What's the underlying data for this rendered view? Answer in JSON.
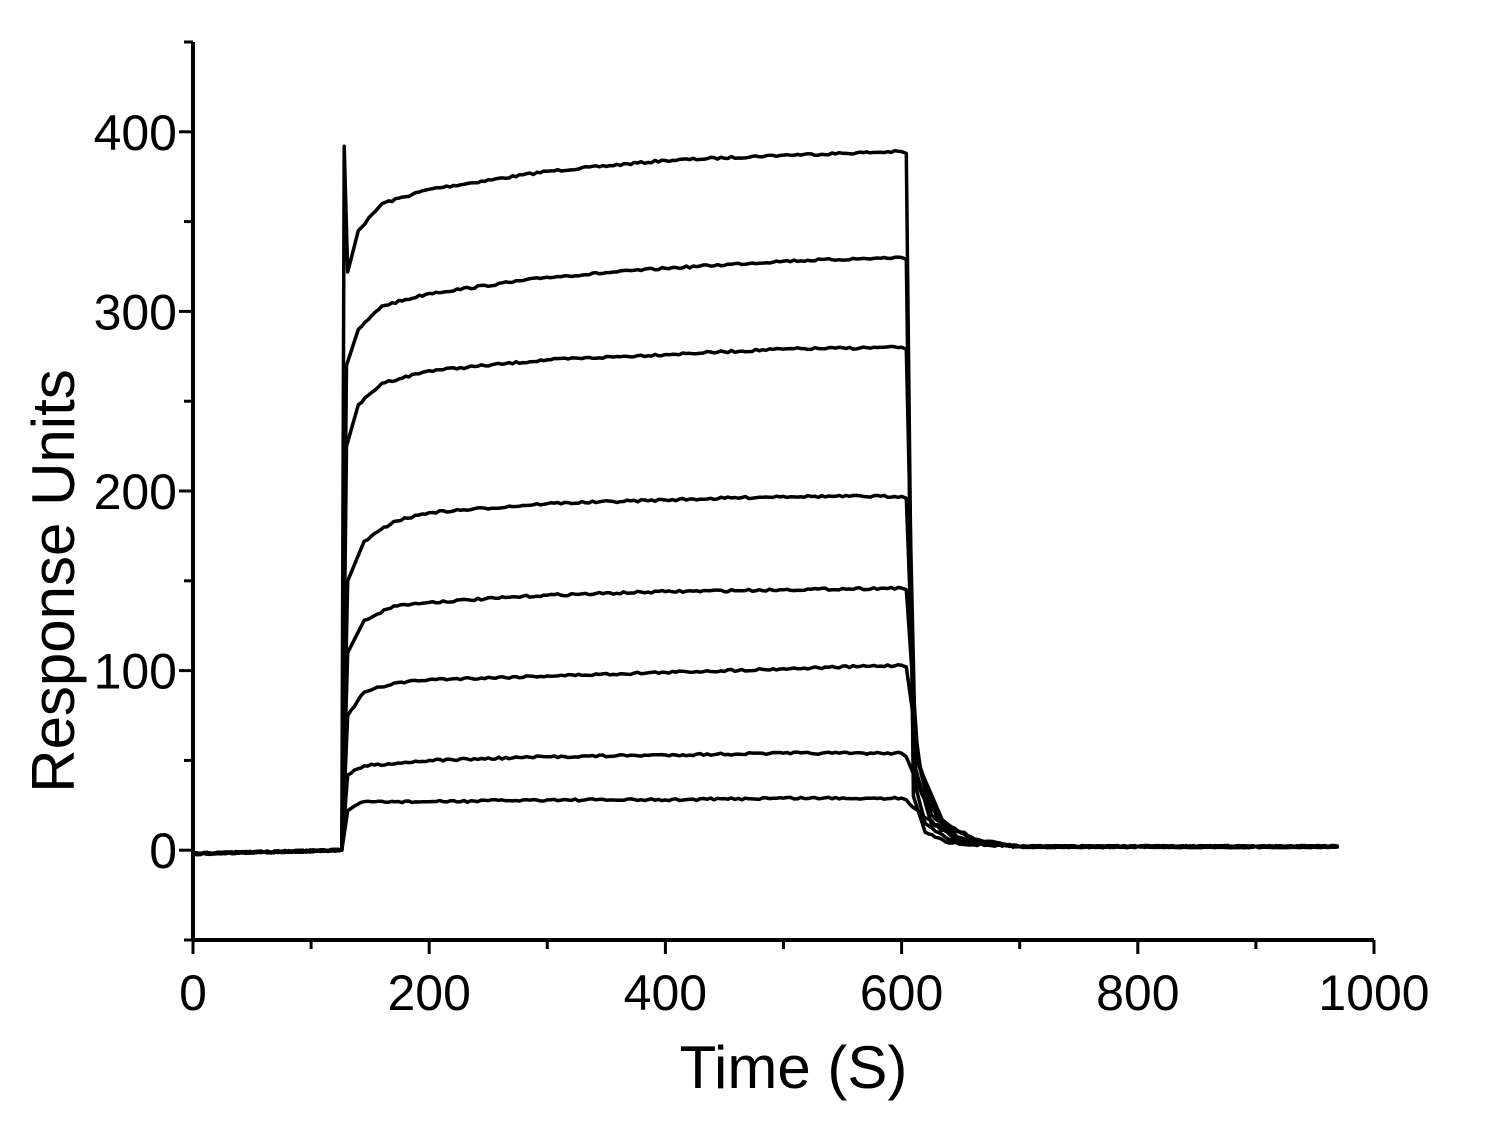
{
  "chart_data": {
    "type": "line",
    "title": "",
    "xlabel": "Time (S)",
    "ylabel": "Response Units",
    "xlim": [
      0,
      1000
    ],
    "ylim": [
      -50,
      450
    ],
    "x_ticks": [
      0,
      200,
      400,
      600,
      800,
      1000
    ],
    "x_minor_ticks": [
      100,
      300,
      500,
      700,
      900
    ],
    "y_ticks": [
      0,
      100,
      200,
      300,
      400
    ],
    "y_minor_ticks": [
      -50,
      50,
      150,
      250,
      350,
      450
    ],
    "grid": false,
    "legend": "none",
    "line_color": "#000000",
    "series": [
      {
        "points": [
          [
            0,
            -2
          ],
          [
            60,
            -1
          ],
          [
            126,
            0
          ],
          [
            128,
            392
          ],
          [
            131,
            322
          ],
          [
            140,
            345
          ],
          [
            160,
            360
          ],
          [
            200,
            368
          ],
          [
            300,
            378
          ],
          [
            400,
            384
          ],
          [
            500,
            387
          ],
          [
            600,
            389
          ],
          [
            604,
            388
          ],
          [
            610,
            30
          ],
          [
            620,
            10
          ],
          [
            640,
            4
          ],
          [
            700,
            2
          ],
          [
            800,
            2
          ],
          [
            900,
            2
          ],
          [
            970,
            2
          ]
        ]
      },
      {
        "points": [
          [
            0,
            -2
          ],
          [
            60,
            -1
          ],
          [
            126,
            0
          ],
          [
            130,
            270
          ],
          [
            140,
            290
          ],
          [
            160,
            303
          ],
          [
            200,
            310
          ],
          [
            300,
            319
          ],
          [
            400,
            324
          ],
          [
            500,
            328
          ],
          [
            600,
            330
          ],
          [
            604,
            329
          ],
          [
            610,
            40
          ],
          [
            620,
            15
          ],
          [
            640,
            6
          ],
          [
            700,
            2
          ],
          [
            800,
            2
          ],
          [
            900,
            2
          ],
          [
            970,
            2
          ]
        ]
      },
      {
        "points": [
          [
            0,
            -2
          ],
          [
            60,
            -1
          ],
          [
            126,
            0
          ],
          [
            130,
            225
          ],
          [
            140,
            248
          ],
          [
            160,
            260
          ],
          [
            200,
            267
          ],
          [
            300,
            273
          ],
          [
            400,
            276
          ],
          [
            500,
            279
          ],
          [
            600,
            280
          ],
          [
            604,
            279
          ],
          [
            612,
            45
          ],
          [
            625,
            15
          ],
          [
            650,
            5
          ],
          [
            700,
            2
          ],
          [
            800,
            2
          ],
          [
            900,
            2
          ],
          [
            970,
            2
          ]
        ]
      },
      {
        "points": [
          [
            0,
            -2
          ],
          [
            60,
            -1
          ],
          [
            126,
            0
          ],
          [
            131,
            150
          ],
          [
            145,
            172
          ],
          [
            170,
            183
          ],
          [
            200,
            188
          ],
          [
            300,
            193
          ],
          [
            400,
            195
          ],
          [
            500,
            197
          ],
          [
            600,
            197
          ],
          [
            604,
            196
          ],
          [
            612,
            55
          ],
          [
            625,
            20
          ],
          [
            650,
            6
          ],
          [
            700,
            2
          ],
          [
            800,
            2
          ],
          [
            900,
            2
          ],
          [
            970,
            2
          ]
        ]
      },
      {
        "points": [
          [
            0,
            -2
          ],
          [
            60,
            -1
          ],
          [
            126,
            0
          ],
          [
            131,
            110
          ],
          [
            145,
            128
          ],
          [
            170,
            136
          ],
          [
            200,
            138
          ],
          [
            300,
            142
          ],
          [
            400,
            144
          ],
          [
            500,
            145
          ],
          [
            600,
            146
          ],
          [
            604,
            145
          ],
          [
            614,
            50
          ],
          [
            630,
            18
          ],
          [
            660,
            6
          ],
          [
            700,
            2
          ],
          [
            800,
            2
          ],
          [
            900,
            2
          ],
          [
            970,
            2
          ]
        ]
      },
      {
        "points": [
          [
            0,
            -2
          ],
          [
            60,
            -1
          ],
          [
            126,
            0
          ],
          [
            131,
            75
          ],
          [
            145,
            88
          ],
          [
            170,
            93
          ],
          [
            200,
            95
          ],
          [
            300,
            97
          ],
          [
            400,
            99
          ],
          [
            500,
            101
          ],
          [
            600,
            103
          ],
          [
            604,
            102
          ],
          [
            616,
            45
          ],
          [
            635,
            16
          ],
          [
            665,
            5
          ],
          [
            700,
            2
          ],
          [
            800,
            2
          ],
          [
            900,
            2
          ],
          [
            970,
            2
          ]
        ]
      },
      {
        "points": [
          [
            0,
            -2
          ],
          [
            60,
            -1
          ],
          [
            126,
            0
          ],
          [
            131,
            42
          ],
          [
            145,
            47
          ],
          [
            200,
            50
          ],
          [
            300,
            52
          ],
          [
            400,
            53
          ],
          [
            500,
            54
          ],
          [
            600,
            54
          ],
          [
            604,
            52
          ],
          [
            618,
            30
          ],
          [
            640,
            12
          ],
          [
            670,
            4
          ],
          [
            700,
            2
          ],
          [
            800,
            2
          ],
          [
            900,
            2
          ],
          [
            970,
            2
          ]
        ]
      },
      {
        "points": [
          [
            0,
            -2
          ],
          [
            60,
            -1
          ],
          [
            126,
            0
          ],
          [
            131,
            22
          ],
          [
            145,
            27
          ],
          [
            200,
            27
          ],
          [
            300,
            28
          ],
          [
            400,
            28
          ],
          [
            500,
            29
          ],
          [
            600,
            29
          ],
          [
            604,
            28
          ],
          [
            620,
            18
          ],
          [
            645,
            8
          ],
          [
            675,
            3
          ],
          [
            700,
            2
          ],
          [
            800,
            2
          ],
          [
            900,
            2
          ],
          [
            970,
            2
          ]
        ]
      }
    ]
  }
}
